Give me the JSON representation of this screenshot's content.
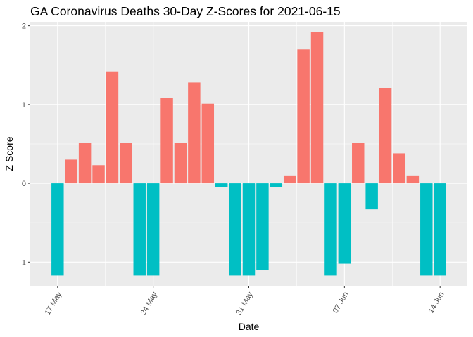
{
  "chart_data": {
    "type": "bar",
    "title": "GA Coronavirus Deaths 30-Day Z-Scores for 2021-06-15",
    "xlabel": "Date",
    "ylabel": "Z Score",
    "ylim": [
      -1.3,
      2.05
    ],
    "y_ticks": [
      -1,
      0,
      1,
      2
    ],
    "x_ticks": [
      {
        "date": "2021-05-17",
        "label": "17 May"
      },
      {
        "date": "2021-05-24",
        "label": "24 May"
      },
      {
        "date": "2021-05-31",
        "label": "31 May"
      },
      {
        "date": "2021-06-07",
        "label": "07 Jun"
      },
      {
        "date": "2021-06-14",
        "label": "14 Jun"
      }
    ],
    "x_range": [
      "2021-05-15",
      "2021-06-16"
    ],
    "dates": [
      "2021-05-17",
      "2021-05-18",
      "2021-05-19",
      "2021-05-20",
      "2021-05-21",
      "2021-05-22",
      "2021-05-23",
      "2021-05-24",
      "2021-05-25",
      "2021-05-26",
      "2021-05-27",
      "2021-05-28",
      "2021-05-29",
      "2021-05-30",
      "2021-05-31",
      "2021-06-01",
      "2021-06-02",
      "2021-06-03",
      "2021-06-04",
      "2021-06-05",
      "2021-06-06",
      "2021-06-07",
      "2021-06-08",
      "2021-06-09",
      "2021-06-10",
      "2021-06-11",
      "2021-06-12",
      "2021-06-13",
      "2021-06-14"
    ],
    "values": [
      -1.17,
      0.3,
      0.51,
      0.23,
      1.42,
      0.51,
      -1.17,
      -1.17,
      1.08,
      0.51,
      1.28,
      1.01,
      -0.05,
      -1.17,
      -1.17,
      -1.1,
      -0.05,
      0.1,
      1.7,
      1.92,
      -1.17,
      -1.02,
      0.51,
      -0.33,
      1.21,
      0.38,
      0.1,
      -1.17,
      -1.17
    ],
    "colors": {
      "positive": "#F8766D",
      "negative": "#00BFC4",
      "panel": "#EBEBEB",
      "grid": "#FFFFFF"
    },
    "grid": true,
    "legend": "none"
  }
}
